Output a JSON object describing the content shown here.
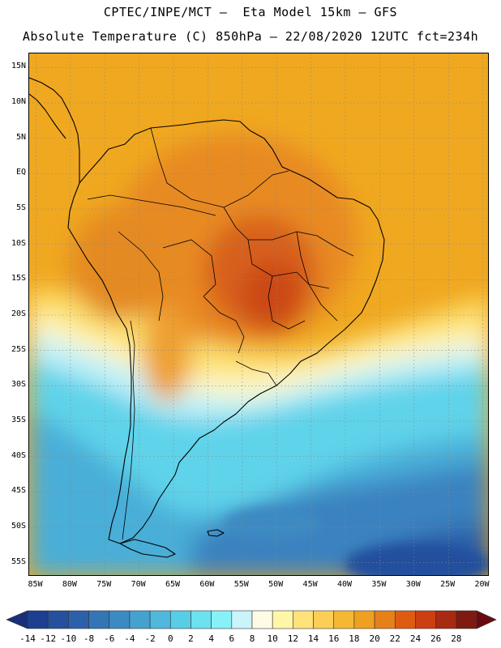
{
  "header": {
    "line1": "CPTEC/INPE/MCT –  Eta Model 15km – GFS",
    "line2": "Absolute Temperature (C) 850hPa – 22/08/2020 12UTC fct=234h"
  },
  "map": {
    "lat_labels": [
      "15N",
      "10N",
      "5N",
      "EQ",
      "5S",
      "10S",
      "15S",
      "20S",
      "25S",
      "30S",
      "35S",
      "40S",
      "45S",
      "50S",
      "55S"
    ],
    "lon_labels": [
      "85W",
      "80W",
      "75W",
      "70W",
      "65W",
      "60W",
      "55W",
      "50W",
      "45W",
      "40W",
      "35W",
      "30W",
      "25W",
      "20W"
    ],
    "lat_range": [
      -57,
      17
    ],
    "lon_range": [
      -86,
      -19
    ]
  },
  "colorbar": {
    "labels": [
      "-14",
      "-12",
      "-10",
      "-8",
      "-6",
      "-4",
      "-2",
      "0",
      "2",
      "4",
      "6",
      "8",
      "10",
      "12",
      "14",
      "16",
      "18",
      "20",
      "22",
      "24",
      "26",
      "28"
    ],
    "colors": [
      "#1c3f8f",
      "#24509e",
      "#2c60ab",
      "#3475b6",
      "#3c8ac2",
      "#45a1cf",
      "#4fb8dc",
      "#58cde7",
      "#6ce1ef",
      "#88f1f7",
      "#c8f4fa",
      "#fffae6",
      "#fff7a6",
      "#ffe27a",
      "#fbcf55",
      "#f5b833",
      "#f0a020",
      "#e8801a",
      "#de5c12",
      "#cb3f10",
      "#a82a10",
      "#7e1a10"
    ],
    "under_color": "#1a2f7a",
    "over_color": "#6a0a10"
  }
}
